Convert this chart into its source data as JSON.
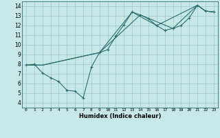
{
  "xlabel": "Humidex (Indice chaleur)",
  "xlim": [
    -0.5,
    23.5
  ],
  "ylim": [
    3.5,
    14.5
  ],
  "xticks": [
    0,
    1,
    2,
    3,
    4,
    5,
    6,
    7,
    8,
    9,
    10,
    11,
    12,
    13,
    14,
    15,
    16,
    17,
    18,
    19,
    20,
    21,
    22,
    23
  ],
  "yticks": [
    4,
    5,
    6,
    7,
    8,
    9,
    10,
    11,
    12,
    13,
    14
  ],
  "bg_color": "#c8e8e8",
  "line_color": "#2a6e6e",
  "line1_x": [
    0,
    1,
    2,
    3,
    4,
    5,
    6,
    7,
    8,
    9,
    10,
    11,
    12,
    13,
    14,
    15,
    16,
    17,
    18,
    19,
    20,
    21,
    22,
    23
  ],
  "line1_y": [
    7.9,
    8.0,
    7.1,
    6.6,
    6.2,
    5.3,
    5.2,
    4.5,
    7.7,
    9.2,
    9.5,
    10.9,
    12.1,
    13.4,
    13.1,
    12.7,
    12.0,
    11.5,
    11.7,
    12.0,
    12.8,
    14.1,
    13.5,
    13.4
  ],
  "line2_x": [
    0,
    2,
    9,
    13,
    16,
    21,
    22,
    23
  ],
  "line2_y": [
    7.9,
    7.9,
    9.2,
    13.4,
    12.0,
    14.1,
    13.5,
    13.4
  ],
  "line3_x": [
    0,
    2,
    9,
    14,
    18,
    21,
    22,
    23
  ],
  "line3_y": [
    7.9,
    7.9,
    9.2,
    13.1,
    11.7,
    14.1,
    13.5,
    13.4
  ]
}
